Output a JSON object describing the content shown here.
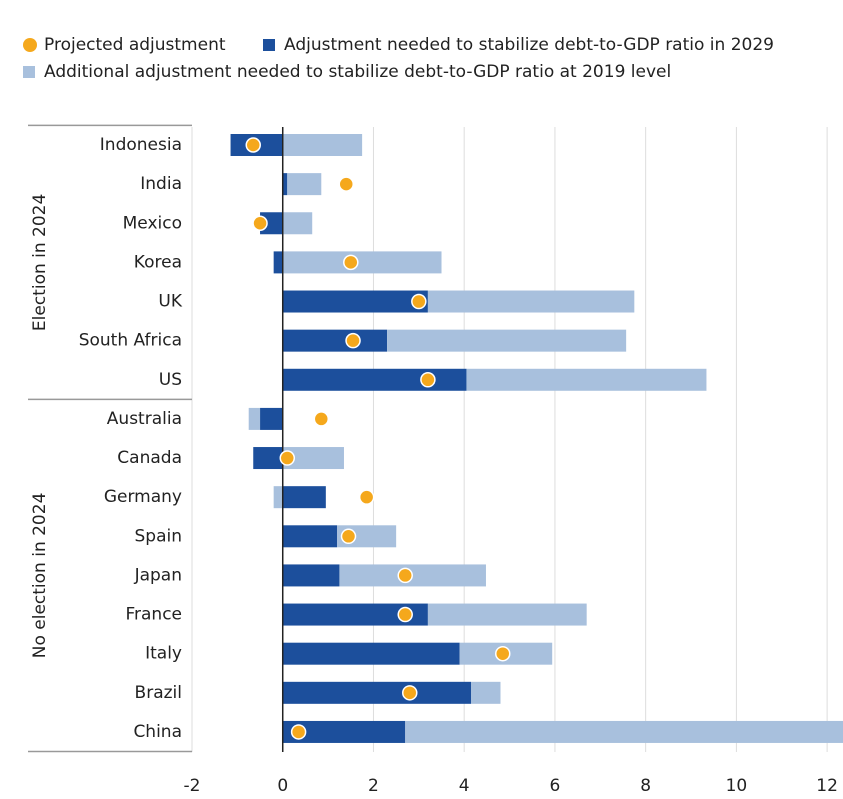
{
  "chart_data": {
    "type": "bar",
    "orientation": "horizontal",
    "stacked": true,
    "groups": [
      {
        "name": "Election in 2024",
        "categories": [
          "Indonesia",
          "India",
          "Mexico",
          "Korea",
          "UK",
          "South Africa",
          "US"
        ]
      },
      {
        "name": "No election in 2024",
        "categories": [
          "Australia",
          "Canada",
          "Germany",
          "Spain",
          "Japan",
          "France",
          "Italy",
          "Brazil",
          "China"
        ]
      }
    ],
    "series": [
      {
        "name": "Projected adjustment",
        "color": "#f5a81c",
        "mark": "dot",
        "values": [
          -0.65,
          1.4,
          -0.5,
          1.5,
          3.0,
          1.55,
          3.2,
          0.85,
          0.1,
          1.85,
          1.45,
          2.7,
          2.7,
          4.85,
          2.8,
          0.35
        ]
      },
      {
        "name": "Adjustment needed to stabilize debt-to-GDP ratio in 2029",
        "color": "#1c4f9c",
        "mark": "bar",
        "values": [
          -1.15,
          0.1,
          -0.5,
          -0.2,
          3.2,
          2.3,
          4.05,
          -0.5,
          -0.65,
          0.95,
          1.2,
          1.25,
          3.2,
          3.9,
          4.15,
          2.7
        ]
      },
      {
        "name": "Additional adjustment needed to stabilize debt-to-GDP ratio at 2019 level",
        "color": "#a8c0dd",
        "mark": "bar",
        "values": [
          1.75,
          0.75,
          0.65,
          3.5,
          4.55,
          5.27,
          5.29,
          -0.25,
          1.35,
          -0.2,
          1.3,
          3.23,
          3.5,
          2.04,
          0.65,
          9.8
        ]
      }
    ],
    "xlim": [
      -2,
      12.35
    ],
    "xticks": [
      -2,
      0,
      2,
      4,
      6,
      8,
      10,
      12
    ],
    "grid": true
  }
}
